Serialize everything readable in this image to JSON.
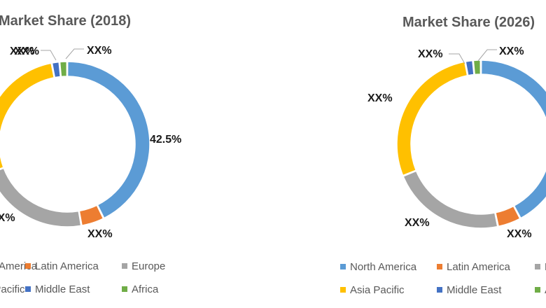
{
  "colors": {
    "north_america": "#5b9bd5",
    "latin_america": "#ed7d31",
    "europe": "#a5a5a5",
    "asia_pacific": "#ffc000",
    "middle_east": "#4472c4",
    "africa": "#70ad47"
  },
  "chart_data": [
    {
      "type": "pie",
      "title": "Market Share (2018)",
      "hole": 0.82,
      "slices": [
        {
          "name": "North America",
          "value": 42.5,
          "label": "42.5%",
          "color": "#5b9bd5"
        },
        {
          "name": "Latin America",
          "value": 4.5,
          "label": "XX%",
          "color": "#ed7d31"
        },
        {
          "name": "Europe",
          "value": 22.0,
          "label": "XX%",
          "color": "#a5a5a5"
        },
        {
          "name": "Asia Pacific",
          "value": 27.5,
          "label": "XX%",
          "color": "#ffc000"
        },
        {
          "name": "Middle East",
          "value": 1.5,
          "label": "XX%",
          "color": "#4472c4"
        },
        {
          "name": "Africa",
          "value": 1.5,
          "label": "XX%",
          "color": "#70ad47"
        }
      ],
      "legend": [
        "North America",
        "Latin America",
        "Europe",
        "Asia Pacific",
        "Middle East",
        "Africa"
      ]
    },
    {
      "type": "pie",
      "title": "Market Share (2026)",
      "hole": 0.82,
      "slices": [
        {
          "name": "North America",
          "value": 42.0,
          "label": "XX%",
          "color": "#5b9bd5"
        },
        {
          "name": "Latin America",
          "value": 4.5,
          "label": "XX%",
          "color": "#ed7d31"
        },
        {
          "name": "Europe",
          "value": 22.0,
          "label": "XX%",
          "color": "#a5a5a5"
        },
        {
          "name": "Asia Pacific",
          "value": 28.0,
          "label": "XX%",
          "color": "#ffc000"
        },
        {
          "name": "Middle East",
          "value": 1.5,
          "label": "XX%",
          "color": "#4472c4"
        },
        {
          "name": "Africa",
          "value": 1.5,
          "label": "XX%",
          "color": "#70ad47"
        }
      ],
      "legend": [
        "North America",
        "Latin America",
        "Europe",
        "Asia Pacific",
        "Middle East",
        "Africa"
      ]
    }
  ]
}
